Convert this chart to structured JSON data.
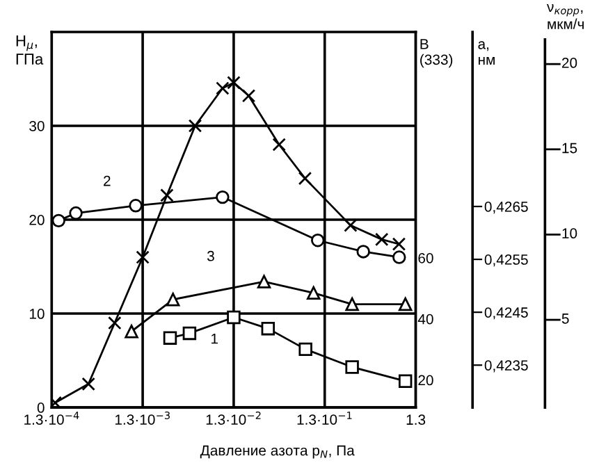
{
  "chart_data": {
    "type": "line",
    "xlabel": "Давление азота p$_{N}$, Па",
    "ylabel": "H$_{μ}$,\nГПа",
    "y2label": "B\n(333)",
    "y3label": "a,\nнм",
    "log": "x",
    "xlim": [
      0.00013,
      1.3
    ],
    "xticks": [
      {
        "value": 0.00013,
        "label": "1.3·10$^{−4}$"
      },
      {
        "value": 0.0013,
        "label": "1.3·10$^{−3}$"
      },
      {
        "value": 0.013,
        "label": "1.3·10$^{−2}$"
      },
      {
        "value": 0.13,
        "label": "1.3·10$^{−1}$"
      },
      1.3
    ],
    "ylim": [
      0,
      40
    ],
    "yticks": [
      0,
      10,
      20,
      30
    ],
    "y2lim": [
      11,
      134
    ],
    "y2ticks": [
      20,
      40,
      60
    ],
    "y3lim": [
      0.4227,
      0.4298
    ],
    "y3ticks": [
      {
        "value": 0.4235,
        "label": "0,4235"
      },
      {
        "value": 0.4245,
        "label": "0,4245"
      },
      {
        "value": 0.4255,
        "label": "0,4255"
      },
      {
        "value": 0.4265,
        "label": "0,4265"
      }
    ],
    "grid": true,
    "series": [
      {
        "color": "#000000",
        "marker": "cross",
        "x": [
          0.000142,
          0.00033,
          0.00064,
          0.0013,
          0.0024,
          0.0049,
          0.0098,
          0.013,
          0.019,
          0.041,
          0.079,
          0.25,
          0.55,
          0.85
        ],
        "values": [
          0.5,
          2.5,
          9,
          16,
          22.6,
          30,
          34,
          34.6,
          33.2,
          28,
          24.4,
          19.4,
          17.9,
          17.4
        ]
      },
      {
        "color": "#000000",
        "marker": "circle",
        "x": [
          0.000155,
          0.00024,
          0.00109,
          0.0098,
          0.109,
          0.345,
          0.855
        ],
        "values": [
          19.9,
          20.7,
          21.5,
          22.4,
          17.8,
          16.6,
          16
        ]
      },
      {
        "color": "#000000",
        "marker": "triangle",
        "x": [
          0.00098,
          0.0028,
          0.028,
          0.098,
          0.26,
          1.0
        ],
        "values": [
          8.1,
          11.5,
          13.4,
          12.2,
          11,
          11
        ]
      },
      {
        "color": "#000000",
        "marker": "square",
        "x": [
          0.0026,
          0.00425,
          0.013,
          0.031,
          0.08,
          0.26,
          1.0
        ],
        "values": [
          7.4,
          7.9,
          9.6,
          8.4,
          6.2,
          4.3,
          2.8
        ]
      }
    ],
    "annotations": [
      "2",
      "3",
      "1",
      "ν$_{корр}$,\nмкм/ч",
      "5",
      "10",
      "15",
      "20"
    ]
  }
}
